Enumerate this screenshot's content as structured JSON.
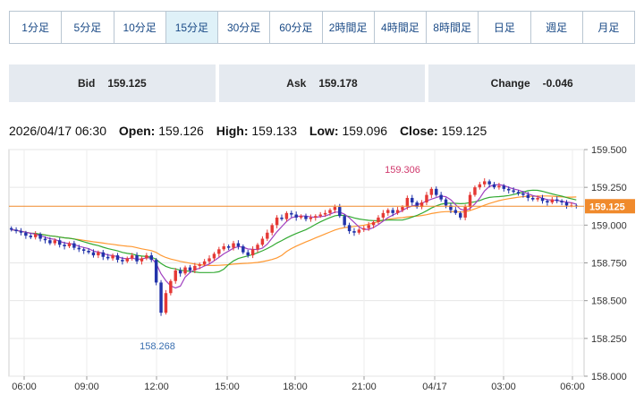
{
  "timeframes": [
    {
      "label": "1分足"
    },
    {
      "label": "5分足"
    },
    {
      "label": "10分足"
    },
    {
      "label": "15分足",
      "active": true
    },
    {
      "label": "30分足"
    },
    {
      "label": "60分足"
    },
    {
      "label": "2時間足"
    },
    {
      "label": "4時間足"
    },
    {
      "label": "8時間足"
    },
    {
      "label": "日足"
    },
    {
      "label": "週足"
    },
    {
      "label": "月足"
    }
  ],
  "quote": {
    "bid_label": "Bid",
    "bid_value": "159.125",
    "ask_label": "Ask",
    "ask_value": "159.178",
    "change_label": "Change",
    "change_value": "-0.046"
  },
  "ohlc": {
    "datetime": "2026/04/17 06:30",
    "open_label": "Open:",
    "open": "159.126",
    "high_label": "High:",
    "high": "159.133",
    "low_label": "Low:",
    "low": "159.096",
    "close_label": "Close:",
    "close": "159.125"
  },
  "chart_data": {
    "type": "candlestick",
    "y_ticks": [
      "159.500",
      "159.250",
      "159.000",
      "158.750",
      "158.500",
      "158.250",
      "158.000"
    ],
    "ylim": [
      158.0,
      159.5
    ],
    "x_ticks": [
      "06:00",
      "09:00",
      "12:00",
      "15:00",
      "18:00",
      "21:00",
      "04/17",
      "03:00",
      "06:00"
    ],
    "current_price": "159.125",
    "annotations": {
      "high": "159.306",
      "low": "158.268"
    },
    "close_series": [
      158.97,
      158.96,
      158.95,
      158.93,
      158.92,
      158.94,
      158.91,
      158.9,
      158.88,
      158.9,
      158.87,
      158.86,
      158.88,
      158.85,
      158.84,
      158.83,
      158.82,
      158.8,
      158.82,
      158.79,
      158.78,
      158.8,
      158.77,
      158.76,
      158.78,
      158.8,
      158.76,
      158.78,
      158.8,
      158.77,
      158.62,
      158.42,
      158.55,
      158.63,
      158.7,
      158.68,
      158.72,
      158.7,
      158.73,
      158.74,
      158.76,
      158.78,
      158.81,
      158.84,
      158.86,
      158.85,
      158.88,
      158.86,
      158.82,
      158.8,
      158.84,
      158.87,
      158.91,
      158.95,
      159.0,
      159.05,
      159.04,
      159.08,
      159.07,
      159.05,
      159.06,
      159.04,
      159.05,
      159.06,
      159.07,
      159.08,
      159.1,
      159.12,
      159.06,
      159.0,
      158.96,
      158.95,
      158.97,
      158.98,
      159.0,
      159.02,
      159.05,
      159.08,
      159.1,
      159.08,
      159.1,
      159.12,
      159.18,
      159.15,
      159.12,
      159.15,
      159.2,
      159.24,
      159.2,
      159.17,
      159.13,
      159.1,
      159.08,
      159.05,
      159.12,
      159.2,
      159.25,
      159.27,
      159.29,
      159.27,
      159.25,
      159.26,
      159.24,
      159.23,
      159.22,
      159.21,
      159.2,
      159.18,
      159.17,
      159.18,
      159.16,
      159.15,
      159.17,
      159.16,
      159.15,
      159.13,
      159.13,
      159.125
    ]
  }
}
